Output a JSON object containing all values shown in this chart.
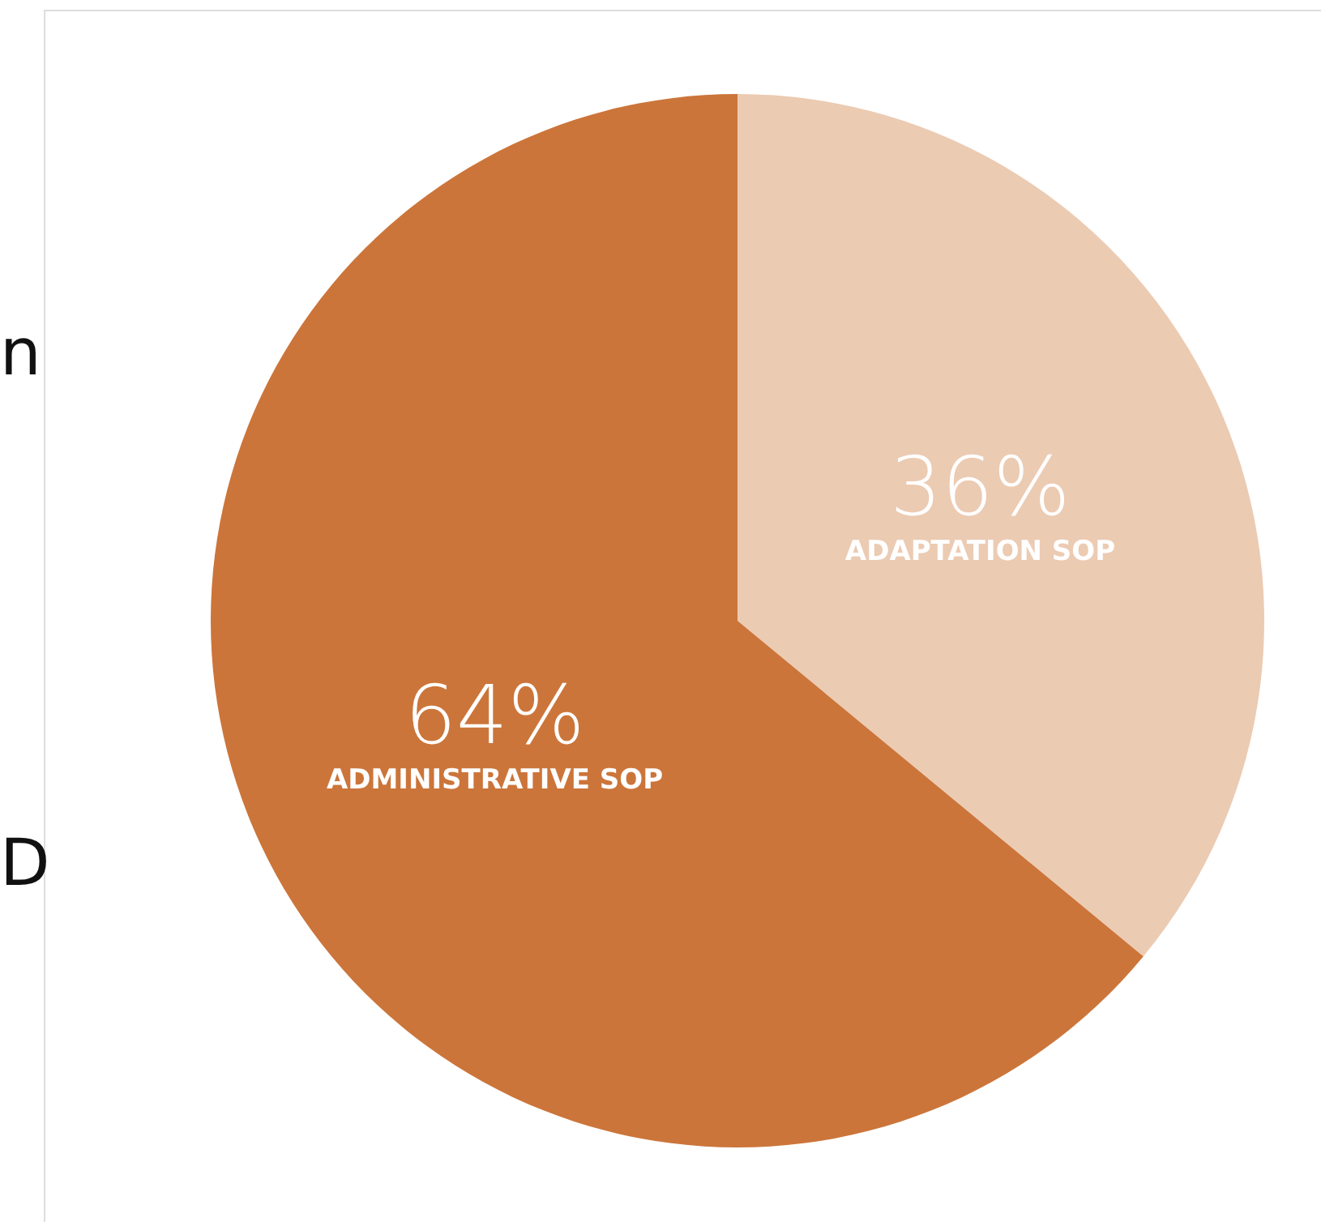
{
  "chart_data": {
    "type": "pie",
    "categories": [
      "ADAPTATION SOP",
      "ADMINISTRATIVE SOP"
    ],
    "values": [
      36,
      64
    ],
    "value_labels": [
      "36%",
      "64%"
    ],
    "colors": [
      "#eccbb3",
      "#cc753a"
    ],
    "annotations": [
      "n",
      "D"
    ]
  }
}
